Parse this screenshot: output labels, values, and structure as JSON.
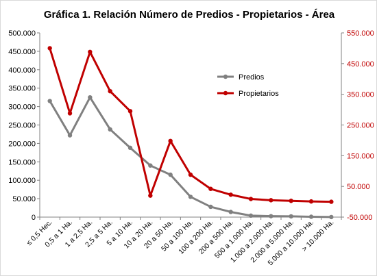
{
  "chart_data": {
    "type": "line",
    "title": "Gráfica 1. Relación Número de Predios - Propietarios - Área",
    "categories": [
      "≤ 0,5 Hec.",
      "0,5 a 1 Ha.",
      "1 a 2,5 Ha.",
      "2,5 a 5 Ha.",
      "5 a 10 Ha.",
      "10 a 20 Ha.",
      "20 a 50 Ha.",
      "50 a 100 Ha.",
      "100 a 200 Ha.",
      "200 a 500 Ha.",
      "500 a 1.000 Ha.",
      "1.000 a 2.000 Ha.",
      "2.000 a 5.000 Ha.",
      "5.000 a 10.000 Ha.",
      "> 10.000 Ha."
    ],
    "series": [
      {
        "name": "Predios",
        "axis": "left",
        "color": "#808080",
        "values": [
          315000,
          222000,
          325000,
          238000,
          188000,
          140000,
          115000,
          55000,
          28000,
          14000,
          4000,
          2500,
          2000,
          1000,
          200
        ]
      },
      {
        "name": "Propietarios",
        "axis": "right",
        "color": "#C00000",
        "values": [
          500000,
          288000,
          488000,
          360000,
          295000,
          20000,
          198000,
          88000,
          42000,
          23000,
          9000,
          5000,
          3000,
          1000,
          0
        ]
      }
    ],
    "y_left": {
      "ylim": [
        0,
        500000
      ],
      "ticks": [
        "0",
        "50.000",
        "100.000",
        "150.000",
        "200.000",
        "250.000",
        "300.000",
        "350.000",
        "400.000",
        "450.000",
        "500.000"
      ]
    },
    "y_right": {
      "ylim": [
        -50000,
        550000
      ],
      "ticks": [
        "-50.000",
        "50.000",
        "150.000",
        "250.000",
        "350.000",
        "450.000",
        "550.000"
      ],
      "color": "#C00000"
    },
    "grid": false,
    "legend_position": "center-right"
  }
}
